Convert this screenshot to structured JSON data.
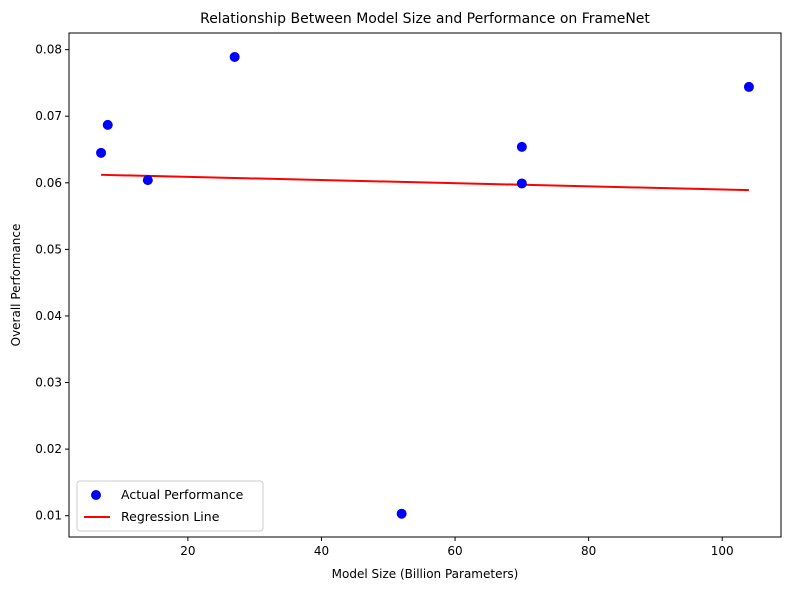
{
  "chart_data": {
    "type": "scatter",
    "title": "Relationship Between Model Size and Performance on FrameNet",
    "xlabel": "Model Size (Billion Parameters)",
    "ylabel": "Overall Performance",
    "xlim": [
      2.2,
      108.8
    ],
    "ylim": [
      0.0068,
      0.0825
    ],
    "xticks": [
      20,
      40,
      60,
      80,
      100
    ],
    "yticks": [
      0.01,
      0.02,
      0.03,
      0.04,
      0.05,
      0.06,
      0.07,
      0.08
    ],
    "xtick_labels": [
      "20",
      "40",
      "60",
      "80",
      "100"
    ],
    "ytick_labels": [
      "0.01",
      "0.02",
      "0.03",
      "0.04",
      "0.05",
      "0.06",
      "0.07",
      "0.08"
    ],
    "grid": false,
    "legend_position": "lower-left",
    "series": [
      {
        "name": "Actual Performance",
        "kind": "scatter",
        "color": "#0000ff",
        "x": [
          7,
          8,
          14,
          27,
          52,
          70,
          70,
          104
        ],
        "y": [
          0.0645,
          0.0687,
          0.0604,
          0.0789,
          0.0103,
          0.0654,
          0.0599,
          0.0744
        ]
      },
      {
        "name": "Regression Line",
        "kind": "line",
        "color": "#ff0000",
        "x": [
          7,
          104
        ],
        "y": [
          0.0612,
          0.0589
        ]
      }
    ]
  }
}
